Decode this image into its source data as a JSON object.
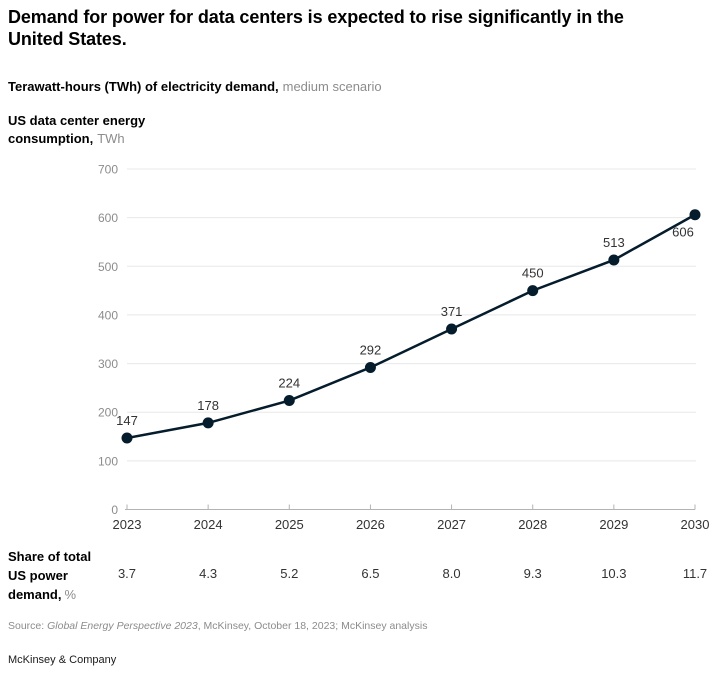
{
  "header": {
    "title_line1": "Demand for power for data centers is expected to rise significantly in the",
    "title_line2": "United States.",
    "subtitle_bold": "Terawatt-hours (TWh) of electricity demand,",
    "subtitle_regular": "medium scenario"
  },
  "y_axis_label": {
    "line1": "US data center energy",
    "line2_bold": "consumption,",
    "line2_unit": "TWh"
  },
  "chart_data": {
    "type": "line",
    "title": "Demand for power for data centers is expected to rise significantly in the United States.",
    "subtitle": "Terawatt-hours (TWh) of electricity demand, medium scenario",
    "ylabel": "US data center energy consumption, TWh",
    "xlabel": "",
    "x": [
      2023,
      2024,
      2025,
      2026,
      2027,
      2028,
      2029,
      2030
    ],
    "series": [
      {
        "name": "US data center energy consumption, TWh",
        "values": [
          147,
          178,
          224,
          292,
          371,
          450,
          513,
          606
        ]
      }
    ],
    "secondary_row": {
      "label": "Share of total US power demand, %",
      "values": [
        "3.7",
        "4.3",
        "5.2",
        "6.5",
        "8.0",
        "9.3",
        "10.3",
        "11.7"
      ]
    },
    "ylim": [
      0,
      700
    ],
    "ytick_step": 100,
    "grid": "horizontal",
    "legend": "none",
    "line_color": "#051c2c"
  },
  "share_row": {
    "label_line1": "Share of total",
    "label_line2": "US power",
    "label_line3_bold": "demand,",
    "label_line3_unit": "%"
  },
  "source": {
    "prefix": "Source: ",
    "italic": "Global Energy Perspective 2023",
    "rest": ", McKinsey, October 18, 2023; McKinsey analysis"
  },
  "footer": {
    "brand": "McKinsey & Company"
  },
  "colors": {
    "accent": "#051c2c",
    "grid": "#e8e8e8",
    "axis": "#b3b3b3",
    "muted_text": "#8c8c8c",
    "dark_text": "#333333",
    "title_text": "#000000"
  }
}
